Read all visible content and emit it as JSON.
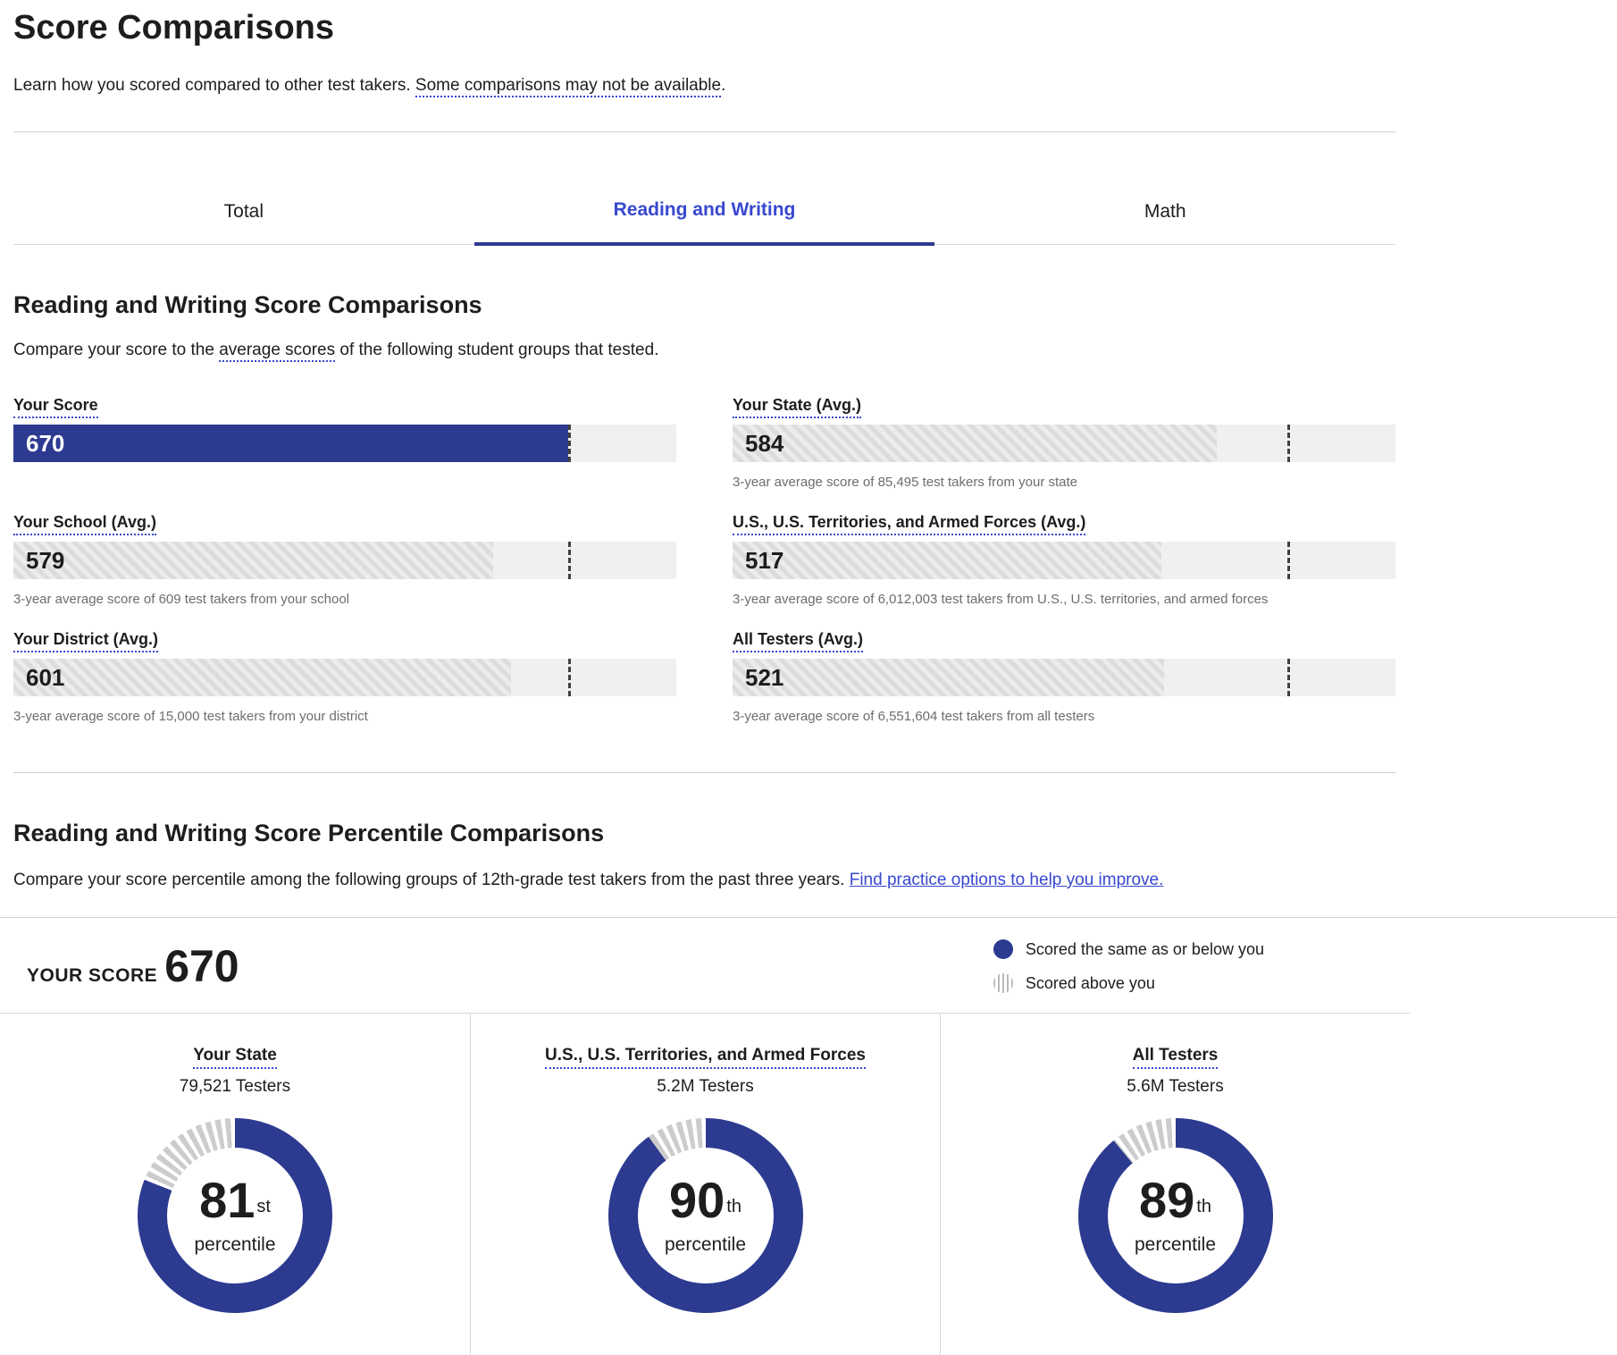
{
  "colors": {
    "primary_blue": "#2c3a90",
    "link_blue": "#3848cf",
    "hatch_light": "#ececec",
    "hatch_dark": "#dcdcdc",
    "track_gray": "#f0f0f0",
    "caption_gray": "#6d6d6d",
    "stripe_gray": "#cccccc"
  },
  "header": {
    "title": "Score Comparisons",
    "intro_text": "Learn how you scored compared to other test takers. ",
    "intro_link": "Some comparisons may not be available",
    "intro_period": "."
  },
  "tabs": [
    {
      "label": "Total",
      "active": false
    },
    {
      "label": "Reading and Writing",
      "active": true
    },
    {
      "label": "Math",
      "active": false
    }
  ],
  "score_section": {
    "heading": "Reading and Writing Score Comparisons",
    "desc_before": "Compare your score to the ",
    "desc_link": "average scores",
    "desc_after": " of the following student groups that tested.",
    "scale_max": 800,
    "your_score": 670,
    "bars": [
      {
        "label": "Your Score",
        "value": 670,
        "style": "solid",
        "caption": ""
      },
      {
        "label": "Your State (Avg.)",
        "value": 584,
        "style": "hatch",
        "caption": "3-year average score of 85,495 test takers from your state"
      },
      {
        "label": "Your School (Avg.)",
        "value": 579,
        "style": "hatch",
        "caption": "3-year average score of 609 test takers from your school"
      },
      {
        "label": "U.S., U.S. Territories, and Armed Forces (Avg.)",
        "value": 517,
        "style": "hatch",
        "caption": "3-year average score of 6,012,003 test takers from U.S., U.S. territories, and armed forces"
      },
      {
        "label": "Your District (Avg.)",
        "value": 601,
        "style": "hatch",
        "caption": "3-year average score of 15,000 test takers from your district"
      },
      {
        "label": "All Testers (Avg.)",
        "value": 521,
        "style": "hatch",
        "caption": "3-year average score of 6,551,604 test takers from all testers"
      }
    ]
  },
  "percentile_section": {
    "heading": "Reading and Writing Score Percentile Comparisons",
    "desc_before": "Compare your score percentile among the following groups of 12th-grade test takers from the past three years. ",
    "desc_link": "Find practice options to help you improve.",
    "your_score_label": "YOUR SCORE",
    "your_score": "670",
    "legend": [
      {
        "label": "Scored the same as or below you",
        "swatch": "solid-blue-circle"
      },
      {
        "label": "Scored above you",
        "swatch": "striped-circle"
      }
    ],
    "donuts": [
      {
        "group": "Your State",
        "testers": "79,521 Testers",
        "percentile": 81,
        "ordinal": "st",
        "sublabel": "percentile"
      },
      {
        "group": "U.S., U.S. Territories, and Armed Forces",
        "testers": "5.2M Testers",
        "percentile": 90,
        "ordinal": "th",
        "sublabel": "percentile"
      },
      {
        "group": "All Testers",
        "testers": "5.6M Testers",
        "percentile": 89,
        "ordinal": "th",
        "sublabel": "percentile"
      }
    ]
  }
}
